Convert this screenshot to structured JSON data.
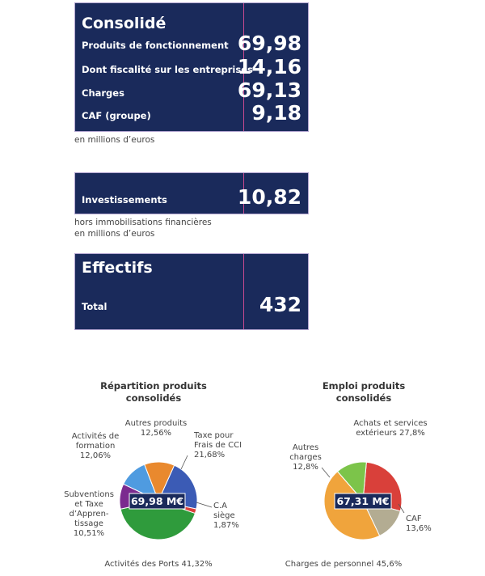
{
  "consolide": {
    "title": "Consolidé",
    "rows": [
      {
        "label": "Produits de fonctionnement",
        "value": "69,98"
      },
      {
        "label": "Dont fiscalité sur les entreprises",
        "value": "14,16"
      },
      {
        "label": "Charges",
        "value": "69,13"
      },
      {
        "label": "CAF (groupe)",
        "value": "9,18"
      }
    ],
    "note": "en millions d’euros"
  },
  "investissements": {
    "label": "Investissements",
    "value": "10,82",
    "note_lines": [
      "hors immobilisations financières",
      "en millions d’euros"
    ]
  },
  "effectifs": {
    "title": "Effectifs",
    "label": "Total",
    "value": "432"
  },
  "colors": {
    "card_bg": "#1a2a5b",
    "divider": "#c64a8f",
    "blue": "#3b5bb5",
    "red": "#d9403a",
    "green": "#2f9b3c",
    "purple": "#7b2b8f",
    "light_blue": "#4f9be0",
    "orange": "#e9892e",
    "lime": "#7cc44a",
    "light_orange": "#f0a43c",
    "taupe": "#b3ac92"
  },
  "chart_data": [
    {
      "type": "pie",
      "title_lines": [
        "Répartition produits",
        "consolidés"
      ],
      "center_label": "69,98 M€",
      "slices": [
        {
          "label_lines": [
            "Taxe pour",
            "Frais de CCI",
            "21,68%"
          ],
          "value": 21.68,
          "color": "#3b5bb5"
        },
        {
          "label_lines": [
            "C.A",
            "siège",
            "1,87%"
          ],
          "value": 1.87,
          "color": "#d9403a"
        },
        {
          "label_lines": [
            "Activités des Ports 41,32%"
          ],
          "value": 41.32,
          "color": "#2f9b3c"
        },
        {
          "label_lines": [
            "Subventions",
            "et Taxe",
            "d’Appren-",
            "tissage",
            "10,51%"
          ],
          "value": 10.51,
          "color": "#7b2b8f"
        },
        {
          "label_lines": [
            "Activités de",
            "formation",
            "12,06%"
          ],
          "value": 12.06,
          "color": "#4f9be0"
        },
        {
          "label_lines": [
            "Autres produits",
            "12,56%"
          ],
          "value": 12.56,
          "color": "#e9892e"
        }
      ]
    },
    {
      "type": "pie",
      "title_lines": [
        "Emploi produits",
        "consolidés"
      ],
      "center_label": "67,31 M€",
      "slices": [
        {
          "label_lines": [
            "Achats et services",
            "extérieurs 27,8%"
          ],
          "value": 27.8,
          "color": "#d9403a"
        },
        {
          "label_lines": [
            "CAF",
            "13,6%"
          ],
          "value": 13.6,
          "color": "#b3ac92"
        },
        {
          "label_lines": [
            "Charges de personnel 45,6%"
          ],
          "value": 45.6,
          "color": "#f0a43c"
        },
        {
          "label_lines": [
            "Autres",
            "charges",
            "12,8%"
          ],
          "value": 12.8,
          "color": "#7cc44a"
        }
      ]
    }
  ]
}
